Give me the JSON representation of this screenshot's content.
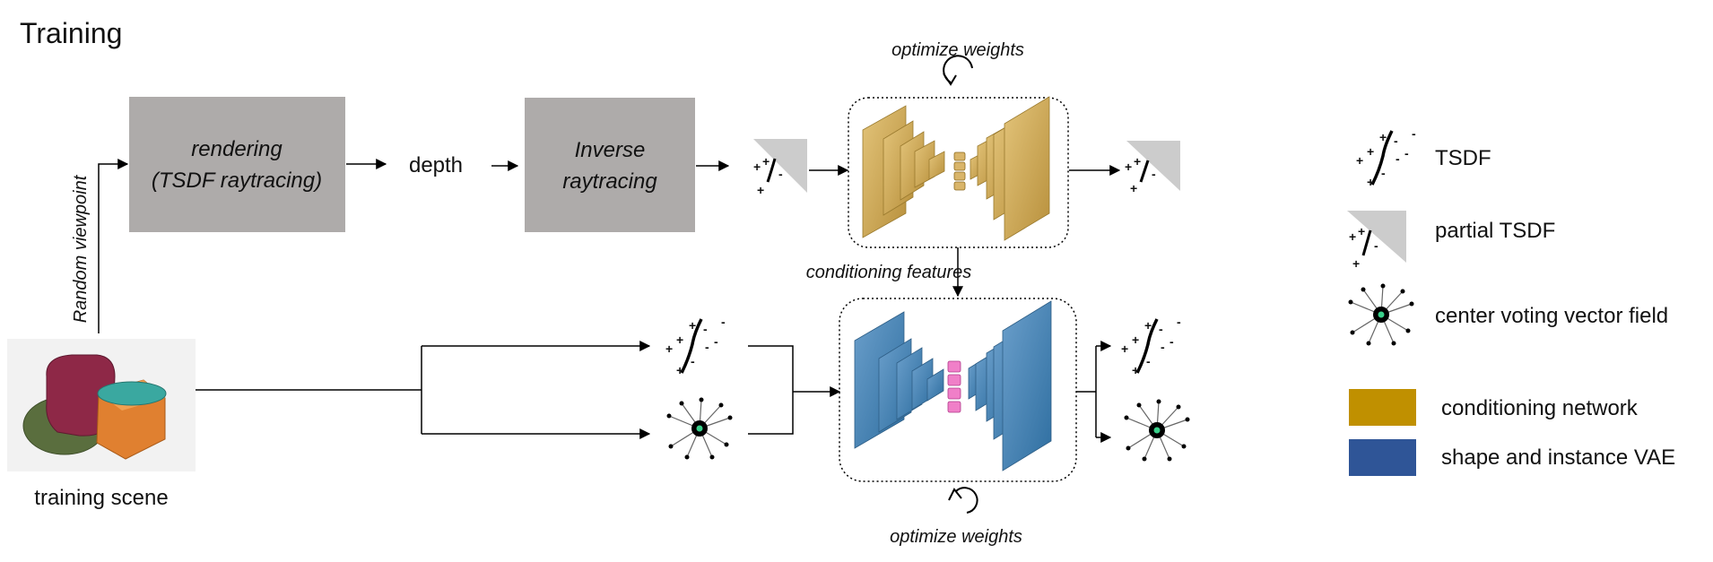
{
  "title": "Training",
  "blocks": {
    "rendering": [
      "rendering",
      "(TSDF raytracing)"
    ],
    "depth": "depth",
    "inverse": [
      "Inverse",
      "raytracing"
    ]
  },
  "labels": {
    "random_viewpoint": "Random viewpoint",
    "training_scene": "training scene",
    "optimize_weights_top": "optimize weights",
    "optimize_weights_bottom": "optimize weights",
    "conditioning_features": "conditioning features"
  },
  "legend": {
    "tsdf": "TSDF",
    "partial_tsdf": "partial TSDF",
    "center_voting": "center voting vector field",
    "conditioning_network": "conditioning network",
    "vae": "shape and instance VAE"
  },
  "colors": {
    "gray_block": "#aeabaa",
    "conditioning": "#c09000",
    "vae": "#2f5597",
    "gold_layer": "#d6b25e",
    "blue_layer": "#4f88b8"
  }
}
